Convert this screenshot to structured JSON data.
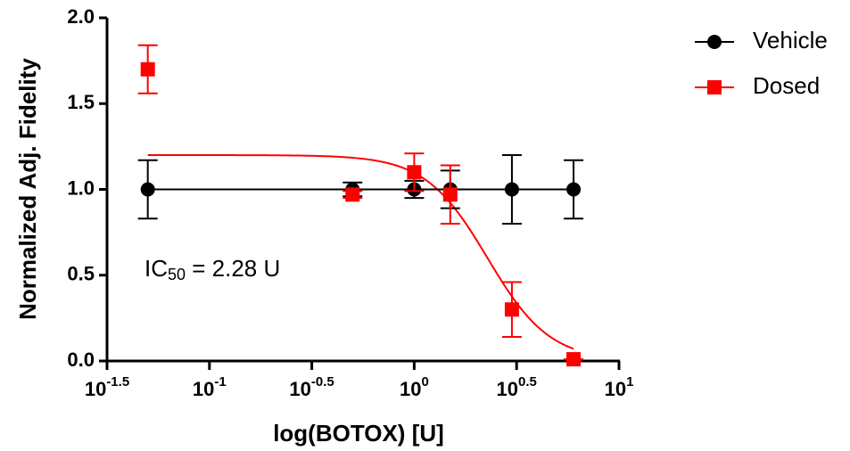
{
  "chart_data": {
    "type": "scatter",
    "x_label": "log(BOTOX) [U]",
    "y_label": "Normalized Adj. Fidelity",
    "annotation": {
      "base": "IC",
      "subscript": "50",
      "rest": " = 2.28 U"
    },
    "log_x": true,
    "xlim": [
      0.03162277660168379,
      10
    ],
    "xticks": [
      {
        "value": 0.03162277660168379,
        "label": "10",
        "exponent": "-1.5"
      },
      {
        "value": 0.1,
        "label": "10",
        "exponent": "-1"
      },
      {
        "value": 0.31622776601683794,
        "label": "10",
        "exponent": "-0.5"
      },
      {
        "value": 1,
        "label": "10",
        "exponent": "0"
      },
      {
        "value": 3.1622776601683795,
        "label": "10",
        "exponent": "0.5"
      },
      {
        "value": 10,
        "label": "10",
        "exponent": "1"
      }
    ],
    "ylim": [
      0,
      2
    ],
    "yticks": [
      {
        "value": 0,
        "label": "0.0"
      },
      {
        "value": 0.5,
        "label": "0.5"
      },
      {
        "value": 1,
        "label": "1.0"
      },
      {
        "value": 1.5,
        "label": "1.5"
      },
      {
        "value": 2,
        "label": "2.0"
      }
    ],
    "x": [
      0.05,
      0.5,
      1,
      1.5,
      3,
      6
    ],
    "series": [
      {
        "name": "Vehicle",
        "color": "#000000",
        "marker": "circle",
        "values": [
          1.0,
          1.0,
          1.0,
          1.0,
          1.0,
          1.0
        ],
        "errors": [
          0.17,
          0.04,
          0.05,
          0.11,
          0.2,
          0.17
        ]
      },
      {
        "name": "Dosed",
        "color": "#ff0000",
        "marker": "square",
        "values": [
          1.7,
          0.97,
          1.1,
          0.97,
          0.3,
          0.01
        ],
        "errors": [
          0.14,
          0.02,
          0.11,
          0.17,
          0.16,
          0.0
        ],
        "fit": {
          "top": 1.2,
          "bottom": 0,
          "ic50": 2.28,
          "hill": 2.86
        }
      }
    ]
  }
}
